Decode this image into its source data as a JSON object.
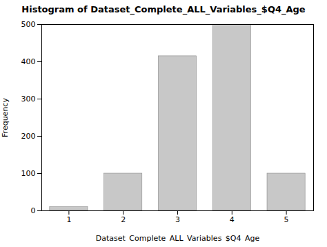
{
  "chart_data": {
    "type": "bar",
    "title": "Histogram of Dataset_Complete_ALL_Variables_$Q4_Age",
    "x_label": "Dataset_Complete_ALL_Variables_$Q4_Age",
    "y_label": "Frequency",
    "categories": [
      1,
      2,
      3,
      4,
      5
    ],
    "values": [
      10,
      100,
      415,
      500,
      100
    ],
    "color": "#c8c8c8",
    "xlim": [
      0.5,
      5.5
    ],
    "xticks": [
      1,
      2,
      3,
      4,
      5
    ],
    "ylim": [
      0,
      500
    ],
    "yticks": [
      0,
      100,
      200,
      300,
      400,
      500
    ],
    "grid": false
  }
}
